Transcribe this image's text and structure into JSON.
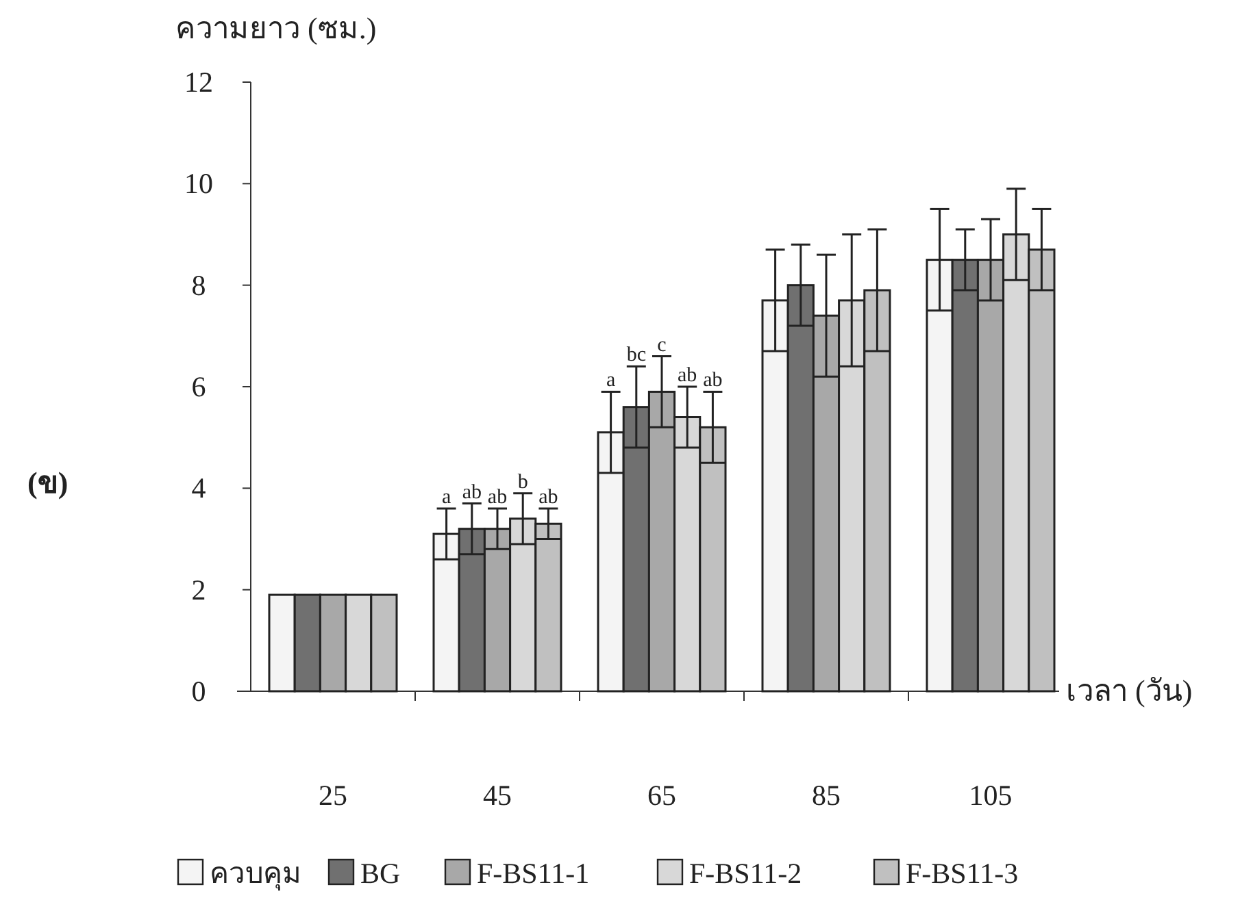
{
  "chart_data": {
    "type": "bar",
    "ylabel": "ความยาว (ซม.)",
    "xlabel": "เวลา (วัน)",
    "categories": [
      "25",
      "45",
      "65",
      "85",
      "105"
    ],
    "ylim": [
      0,
      12
    ],
    "yticks": [
      0,
      2,
      4,
      6,
      8,
      10,
      12
    ],
    "grid": false,
    "legend": "bottom",
    "series": [
      {
        "name": "ควบคุม",
        "color": "#f4f4f4",
        "values": [
          1.9,
          3.1,
          5.1,
          7.7,
          8.5
        ],
        "errors": [
          null,
          0.5,
          0.8,
          1.0,
          1.0
        ]
      },
      {
        "name": "BG",
        "color": "#707070",
        "values": [
          1.9,
          3.2,
          5.6,
          8.0,
          8.5
        ],
        "errors": [
          null,
          0.5,
          0.8,
          0.8,
          0.6
        ]
      },
      {
        "name": "F-BS11-1",
        "color": "#a8a8a8",
        "values": [
          1.9,
          3.2,
          5.9,
          7.4,
          8.5
        ],
        "errors": [
          null,
          0.4,
          0.7,
          1.2,
          0.8
        ]
      },
      {
        "name": "F-BS11-2",
        "color": "#d8d8d8",
        "values": [
          1.9,
          3.4,
          5.4,
          7.7,
          9.0
        ],
        "errors": [
          null,
          0.5,
          0.6,
          1.3,
          0.9
        ]
      },
      {
        "name": "F-BS11-3",
        "color": "#c0c0c0",
        "values": [
          1.9,
          3.3,
          5.2,
          7.9,
          8.7
        ],
        "errors": [
          null,
          0.3,
          0.7,
          1.2,
          0.8
        ]
      }
    ],
    "annotations": [
      "a",
      "ab",
      "ab",
      "b",
      "ab",
      "a",
      "bc",
      "c",
      "ab",
      "ab",
      "(ข)"
    ]
  }
}
